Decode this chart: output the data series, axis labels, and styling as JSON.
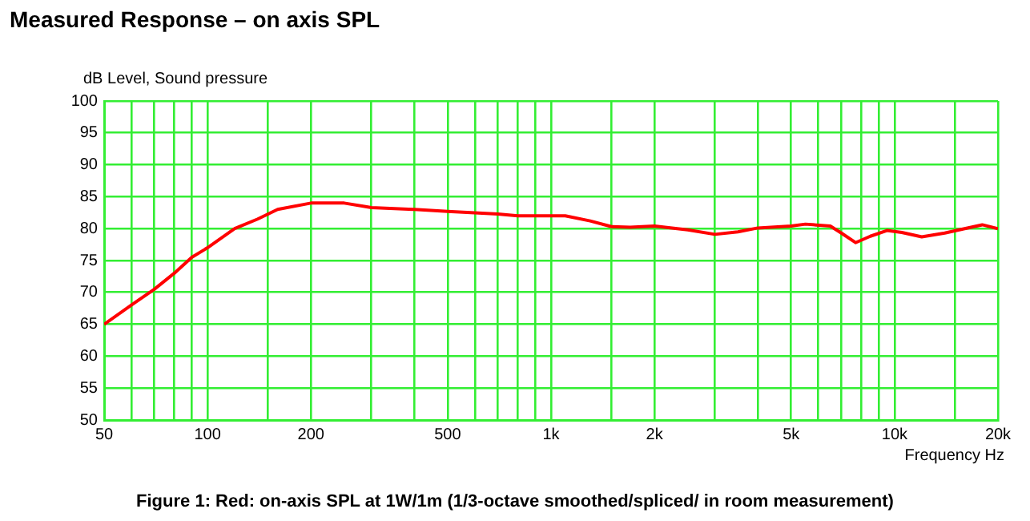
{
  "chart_data": {
    "type": "line",
    "title": "Measured Response – on axis SPL",
    "xlabel": "Frequency  Hz",
    "ylabel": "dB Level, Sound pressure",
    "annotations": [
      "Figure 1: Red: on-axis SPL at 1W/1m (1/3-octave smoothed/spliced/ in room measurement)"
    ],
    "log": "x",
    "grid": true,
    "marker": "none",
    "line_style": "solid",
    "x": [
      50,
      60,
      70,
      80,
      90,
      100,
      120,
      140,
      160,
      200,
      250,
      300,
      400,
      500,
      700,
      800,
      1000,
      1100,
      1300,
      1500,
      1700,
      2000,
      2500,
      3000,
      3500,
      4000,
      5000,
      5500,
      6500,
      7000,
      7700,
      8500,
      9500,
      10500,
      12000,
      14000,
      16000,
      18000,
      20000
    ],
    "series": [
      {
        "color": "#ff0000",
        "values": [
          65,
          68,
          70.5,
          73,
          75.5,
          77,
          80,
          81.5,
          83,
          84,
          84,
          83.3,
          83,
          82.7,
          82.3,
          82,
          82,
          82,
          81.2,
          80.3,
          80.2,
          80.4,
          79.8,
          79.1,
          79.5,
          80.1,
          80.4,
          80.7,
          80.4,
          79.3,
          77.8,
          78.8,
          79.7,
          79.4,
          78.7,
          79.3,
          80,
          80.6,
          80
        ]
      }
    ],
    "xlim": [
      50,
      20000
    ],
    "xticks": [
      50,
      {
        "value": 60,
        "label": null
      },
      {
        "value": 70,
        "label": null
      },
      {
        "value": 80,
        "label": null
      },
      {
        "value": 90,
        "label": null
      },
      100,
      {
        "value": 150,
        "label": null
      },
      200,
      {
        "value": 300,
        "label": null
      },
      {
        "value": 400,
        "label": null
      },
      500,
      {
        "value": 600,
        "label": null
      },
      {
        "value": 700,
        "label": null
      },
      {
        "value": 800,
        "label": null
      },
      {
        "value": 900,
        "label": null
      },
      {
        "value": 1000,
        "label": "1k"
      },
      {
        "value": 1500,
        "label": null
      },
      {
        "value": 2000,
        "label": "2k"
      },
      {
        "value": 3000,
        "label": null
      },
      {
        "value": 4000,
        "label": null
      },
      {
        "value": 5000,
        "label": "5k"
      },
      {
        "value": 6000,
        "label": null
      },
      {
        "value": 7000,
        "label": null
      },
      {
        "value": 8000,
        "label": null
      },
      {
        "value": 9000,
        "label": null
      },
      {
        "value": 10000,
        "label": "10k"
      },
      {
        "value": 15000,
        "label": null
      },
      {
        "value": 20000,
        "label": "20k"
      }
    ],
    "ylim": [
      50,
      100
    ],
    "yticks": [
      50,
      55,
      60,
      65,
      70,
      75,
      80,
      85,
      90,
      95,
      100
    ]
  }
}
